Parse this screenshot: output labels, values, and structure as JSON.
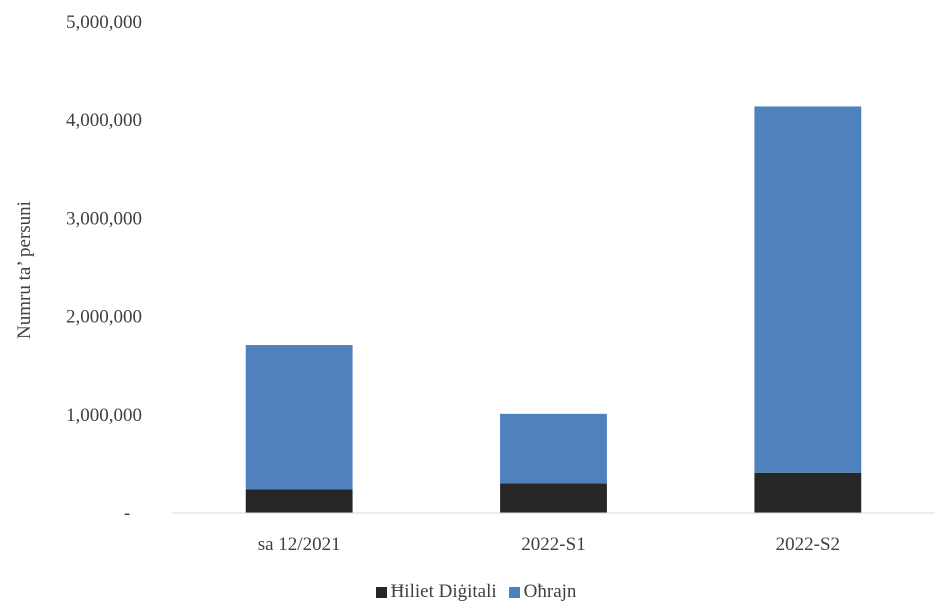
{
  "chart_data": {
    "type": "bar",
    "stacked": true,
    "categories": [
      "sa 12/2021",
      "2022-S1",
      "2022-S2"
    ],
    "series": [
      {
        "name": "Ħiliet Diġitali",
        "values": [
          240000,
          300000,
          410000
        ],
        "color": "#262626"
      },
      {
        "name": "Oħrajn",
        "values": [
          1470000,
          710000,
          3730000
        ],
        "color": "#4f81bd"
      }
    ],
    "ylabel": "Numru ta’ persuni",
    "xlabel": "",
    "ylim": [
      0,
      5000000
    ],
    "y_ticks": [
      {
        "value": 0,
        "label": "-"
      },
      {
        "value": 1000000,
        "label": "1,000,000"
      },
      {
        "value": 2000000,
        "label": "2,000,000"
      },
      {
        "value": 3000000,
        "label": "3,000,000"
      },
      {
        "value": 4000000,
        "label": "4,000,000"
      },
      {
        "value": 5000000,
        "label": "5,000,000"
      }
    ],
    "grid": false,
    "legend_position": "bottom"
  }
}
